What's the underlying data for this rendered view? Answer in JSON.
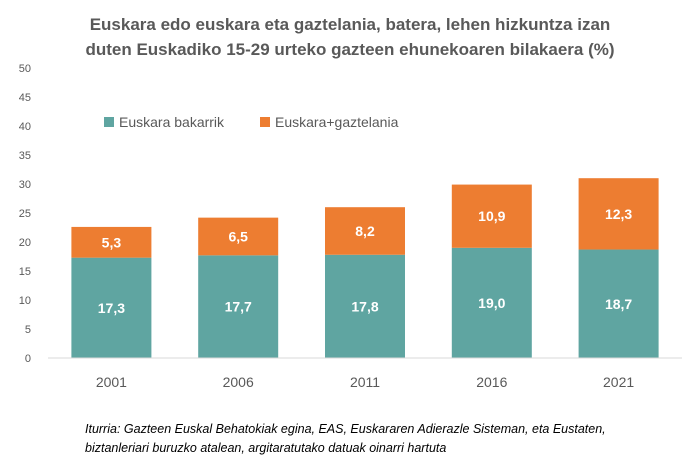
{
  "chart_data": {
    "type": "bar",
    "stacked": true,
    "title_lines": [
      "Euskara edo euskara eta gaztelania, batera, lehen hizkuntza izan",
      "duten Euskadiko 15-29 urteko gazteen ehunekoaren bilakaera (%)"
    ],
    "categories": [
      "2001",
      "2006",
      "2011",
      "2016",
      "2021"
    ],
    "series": [
      {
        "name": "Euskara bakarrik",
        "color": "#5fa5a1",
        "values": [
          17.3,
          17.7,
          17.8,
          19.0,
          18.7
        ],
        "labels": [
          "17,3",
          "17,7",
          "17,8",
          "19,0",
          "18,7"
        ]
      },
      {
        "name": "Euskara+gaztelania",
        "color": "#ed7d31",
        "values": [
          5.3,
          6.5,
          8.2,
          10.9,
          12.3
        ],
        "labels": [
          "5,3",
          "6,5",
          "8,2",
          "10,9",
          "12,3"
        ]
      }
    ],
    "ylim": [
      0,
      50
    ],
    "yticks": [
      0,
      5,
      10,
      15,
      20,
      25,
      30,
      35,
      40,
      45,
      50
    ],
    "grid": false,
    "legend_position": "top-left"
  },
  "footnote_lines": [
    "Iturria: Gazteen Euskal Behatokiak egina, EAS, Euskararen Adierazle Sisteman, eta Eustaten,",
    "biztanleriari buruzko atalean, argitaratutako datuak oinarri hartuta"
  ]
}
